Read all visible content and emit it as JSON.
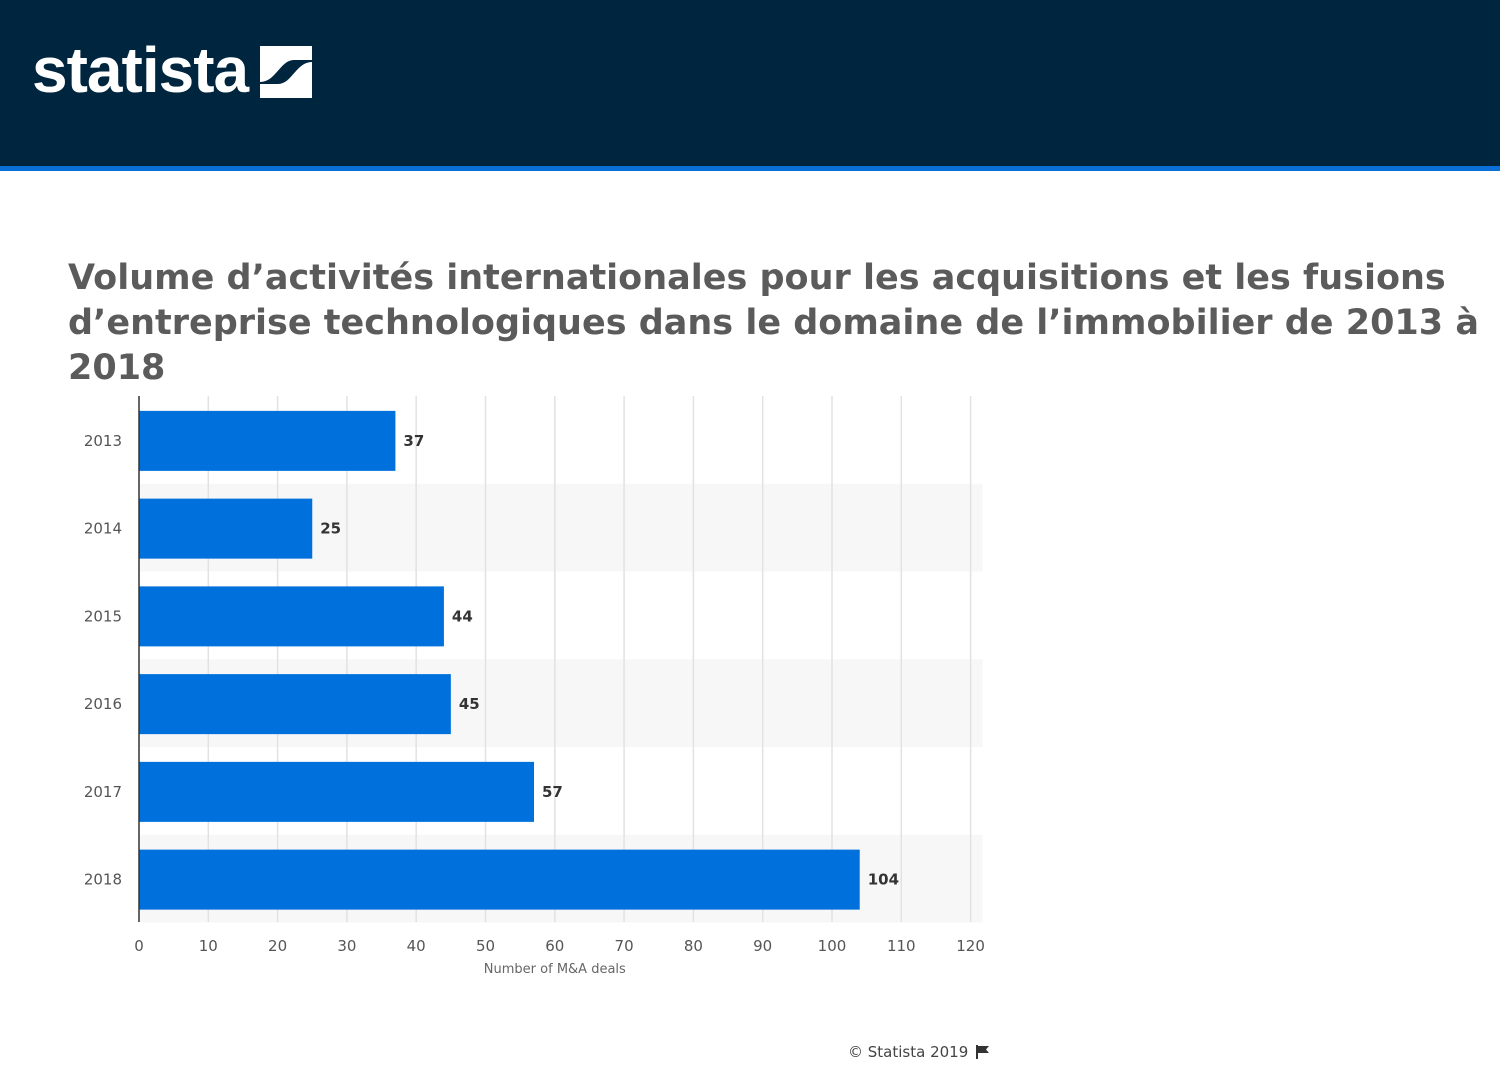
{
  "header": {
    "logo_text": "statista",
    "logo_mark_icon": "statista-slash-icon",
    "background_color": "#00253f",
    "accent_color": "#0a6fd6"
  },
  "title": "Volume d’activités internationales pour les acquisitions et les fusions d’entreprise technologiques dans le domaine de l’immobilier de 2013 à 2018",
  "chart_data": {
    "type": "bar",
    "orientation": "horizontal",
    "title": "Volume d’activités internationales pour les acquisitions et les fusions d’entreprise technologiques dans le domaine de l’immobilier de 2013 à 2018",
    "categories": [
      "2013",
      "2014",
      "2015",
      "2016",
      "2017",
      "2018"
    ],
    "values": [
      37,
      25,
      44,
      45,
      57,
      104
    ],
    "value_labels": [
      "37",
      "25",
      "44",
      "45",
      "57",
      "104"
    ],
    "xlabel": "Number of M&A deals",
    "ylabel": "",
    "xlim": [
      0,
      120
    ],
    "x_ticks": [
      0,
      10,
      20,
      30,
      40,
      50,
      60,
      70,
      80,
      90,
      100,
      110,
      120
    ],
    "x_tick_labels": [
      "0",
      "10",
      "20",
      "30",
      "40",
      "50",
      "60",
      "70",
      "80",
      "90",
      "100",
      "110",
      "120"
    ],
    "grid": true,
    "alternating_row_bands": true,
    "bar_color": "#0070dc"
  },
  "footer": {
    "copyright": "© Statista 2019",
    "flag_icon": "flag-icon"
  }
}
